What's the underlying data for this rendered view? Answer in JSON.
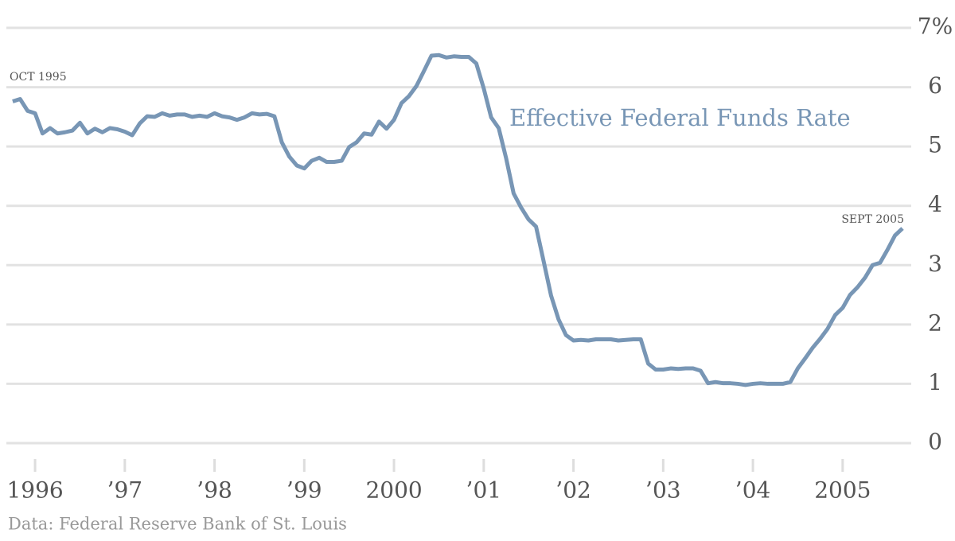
{
  "chart_data": {
    "type": "line",
    "label": "Effective Federal Funds Rate",
    "annotations": [
      "OCT 1995",
      "SEPT 2005"
    ],
    "source": "Data: Federal Reserve Bank of St. Louis",
    "grid": true,
    "xlim": [
      1995.68,
      2005.72
    ],
    "xticks": [
      {
        "value": 1996,
        "label": "1996"
      },
      {
        "value": 1997,
        "label": "’97"
      },
      {
        "value": 1998,
        "label": "’98"
      },
      {
        "value": 1999,
        "label": "’99"
      },
      {
        "value": 2000,
        "label": "2000"
      },
      {
        "value": 2001,
        "label": "’01"
      },
      {
        "value": 2002,
        "label": "’02"
      },
      {
        "value": 2003,
        "label": "’03"
      },
      {
        "value": 2004,
        "label": "’04"
      },
      {
        "value": 2005,
        "label": "2005"
      }
    ],
    "ylim": [
      0,
      7
    ],
    "yticks": [
      0,
      1,
      2,
      3,
      4,
      5,
      6,
      {
        "value": 7,
        "label": "7%"
      }
    ],
    "x": [
      1995.75,
      1995.833,
      1995.917,
      1996,
      1996.083,
      1996.167,
      1996.25,
      1996.333,
      1996.417,
      1996.5,
      1996.583,
      1996.667,
      1996.75,
      1996.833,
      1996.917,
      1997,
      1997.083,
      1997.167,
      1997.25,
      1997.333,
      1997.417,
      1997.5,
      1997.583,
      1997.667,
      1997.75,
      1997.833,
      1997.917,
      1998,
      1998.083,
      1998.167,
      1998.25,
      1998.333,
      1998.417,
      1998.5,
      1998.583,
      1998.667,
      1998.75,
      1998.833,
      1998.917,
      1999,
      1999.083,
      1999.167,
      1999.25,
      1999.333,
      1999.417,
      1999.5,
      1999.583,
      1999.667,
      1999.75,
      1999.833,
      1999.917,
      2000,
      2000.083,
      2000.167,
      2000.25,
      2000.333,
      2000.417,
      2000.5,
      2000.583,
      2000.667,
      2000.75,
      2000.833,
      2000.917,
      2001,
      2001.083,
      2001.167,
      2001.25,
      2001.333,
      2001.417,
      2001.5,
      2001.583,
      2001.667,
      2001.75,
      2001.833,
      2001.917,
      2002,
      2002.083,
      2002.167,
      2002.25,
      2002.333,
      2002.417,
      2002.5,
      2002.583,
      2002.667,
      2002.75,
      2002.833,
      2002.917,
      2003,
      2003.083,
      2003.167,
      2003.25,
      2003.333,
      2003.417,
      2003.5,
      2003.583,
      2003.667,
      2003.75,
      2003.833,
      2003.917,
      2004,
      2004.083,
      2004.167,
      2004.25,
      2004.333,
      2004.417,
      2004.5,
      2004.583,
      2004.667,
      2004.75,
      2004.833,
      2004.917,
      2005,
      2005.083,
      2005.167,
      2005.25,
      2005.333,
      2005.417,
      2005.5,
      2005.583,
      2005.667
    ],
    "series": [
      {
        "name": "Effective Federal Funds Rate",
        "color": "#7896b5",
        "values": [
          5.76,
          5.8,
          5.6,
          5.56,
          5.22,
          5.31,
          5.22,
          5.24,
          5.27,
          5.4,
          5.22,
          5.3,
          5.24,
          5.31,
          5.29,
          5.25,
          5.19,
          5.39,
          5.51,
          5.5,
          5.56,
          5.52,
          5.54,
          5.54,
          5.5,
          5.52,
          5.5,
          5.56,
          5.51,
          5.49,
          5.45,
          5.49,
          5.56,
          5.54,
          5.55,
          5.51,
          5.07,
          4.83,
          4.68,
          4.63,
          4.76,
          4.81,
          4.74,
          4.74,
          4.76,
          4.99,
          5.07,
          5.22,
          5.2,
          5.42,
          5.3,
          5.45,
          5.73,
          5.85,
          6.02,
          6.27,
          6.53,
          6.54,
          6.5,
          6.52,
          6.51,
          6.51,
          6.4,
          5.98,
          5.49,
          5.31,
          4.8,
          4.21,
          3.97,
          3.77,
          3.65,
          3.07,
          2.49,
          2.09,
          1.82,
          1.73,
          1.74,
          1.73,
          1.75,
          1.75,
          1.75,
          1.73,
          1.74,
          1.75,
          1.75,
          1.34,
          1.24,
          1.24,
          1.26,
          1.25,
          1.26,
          1.26,
          1.22,
          1.01,
          1.03,
          1.01,
          1.01,
          1.0,
          0.98,
          1.0,
          1.01,
          1.0,
          1.0,
          1.0,
          1.03,
          1.26,
          1.43,
          1.61,
          1.76,
          1.93,
          2.16,
          2.28,
          2.5,
          2.63,
          2.79,
          3.0,
          3.04,
          3.26,
          3.5,
          3.62
        ]
      }
    ]
  }
}
